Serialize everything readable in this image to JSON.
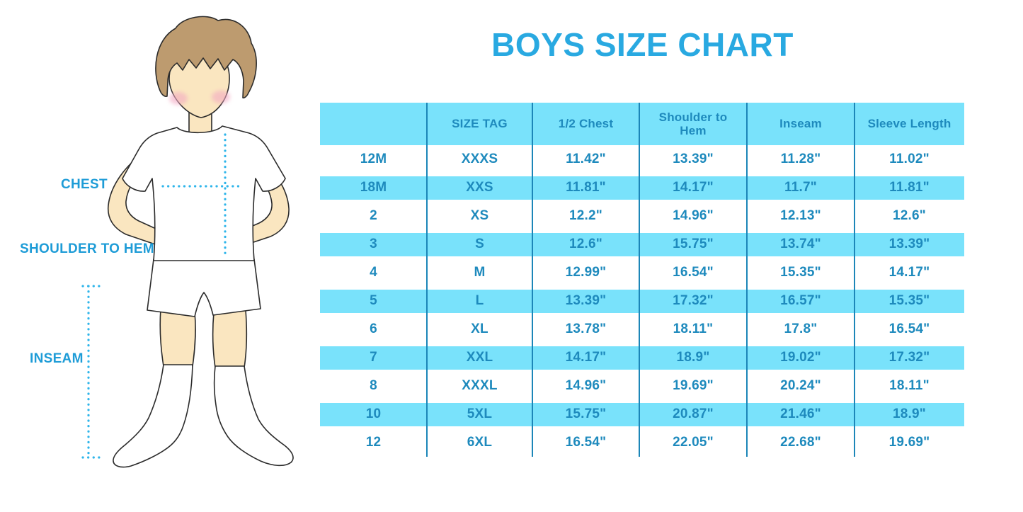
{
  "title": "BOYS SIZE CHART",
  "figure": {
    "labels": {
      "chest": "CHEST",
      "shoulder_to_hem": "SHOULDER TO HEM",
      "inseam": "INSEAM"
    }
  },
  "chart_data": {
    "type": "table",
    "title": "BOYS SIZE CHART",
    "columns": [
      "",
      "SIZE TAG",
      "1/2 Chest",
      "Shoulder to Hem",
      "Inseam",
      "Sleeve Length"
    ],
    "rows": [
      [
        "12M",
        "XXXS",
        "11.42\"",
        "13.39\"",
        "11.28\"",
        "11.02\""
      ],
      [
        "18M",
        "XXS",
        "11.81\"",
        "14.17\"",
        "11.7\"",
        "11.81\""
      ],
      [
        "2",
        "XS",
        "12.2\"",
        "14.96\"",
        "12.13\"",
        "12.6\""
      ],
      [
        "3",
        "S",
        "12.6\"",
        "15.75\"",
        "13.74\"",
        "13.39\""
      ],
      [
        "4",
        "M",
        "12.99\"",
        "16.54\"",
        "15.35\"",
        "14.17\""
      ],
      [
        "5",
        "L",
        "13.39\"",
        "17.32\"",
        "16.57\"",
        "15.35\""
      ],
      [
        "6",
        "XL",
        "13.78\"",
        "18.11\"",
        "17.8\"",
        "16.54\""
      ],
      [
        "7",
        "XXL",
        "14.17\"",
        "18.9\"",
        "19.02\"",
        "17.32\""
      ],
      [
        "8",
        "XXXL",
        "14.96\"",
        "19.69\"",
        "20.24\"",
        "18.11\""
      ],
      [
        "10",
        "5XL",
        "15.75\"",
        "20.87\"",
        "21.46\"",
        "18.9\""
      ],
      [
        "12",
        "6XL",
        "16.54\"",
        "22.05\"",
        "22.68\"",
        "19.69\""
      ]
    ],
    "layout": {
      "striped": "alternating cyan bands starting at header and second data row",
      "grid": "vertical column separators only, no outer border"
    }
  },
  "colors": {
    "accent_title": "#29A9E1",
    "table_band": "#79E2FB",
    "table_text": "#1E8ABD",
    "column_line": "#1C86B8",
    "measure_dots": "#2FB5EA",
    "label_text": "#1E9CD7",
    "skin": "#FAE6C0",
    "hair": "#BD9B6F",
    "blush": "#F3A9C2"
  }
}
